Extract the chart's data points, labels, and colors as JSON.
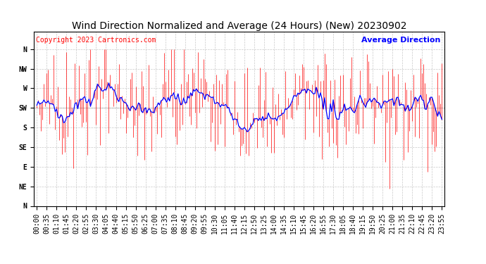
{
  "title": "Wind Direction Normalized and Average (24 Hours) (New) 20230902",
  "copyright": "Copyright 2023 Cartronics.com",
  "legend_avg": "Average Direction",
  "legend_avg_color": "blue",
  "legend_raw_color": "red",
  "background_color": "#ffffff",
  "grid_color": "#bbbbbb",
  "ytick_labels": [
    "N",
    "NW",
    "W",
    "SW",
    "S",
    "SE",
    "E",
    "NE",
    "N"
  ],
  "ytick_values": [
    360,
    315,
    270,
    225,
    180,
    135,
    90,
    45,
    0
  ],
  "ylim": [
    0,
    400
  ],
  "xlabel": "",
  "ylabel": "",
  "minutes_interval": 5,
  "xtick_interval": 7,
  "title_fontsize": 10,
  "tick_fontsize": 7,
  "copyright_fontsize": 7,
  "legend_fontsize": 8,
  "avg_baseline": 225,
  "raw_noise_std": 60,
  "avg_smooth_window": 15
}
